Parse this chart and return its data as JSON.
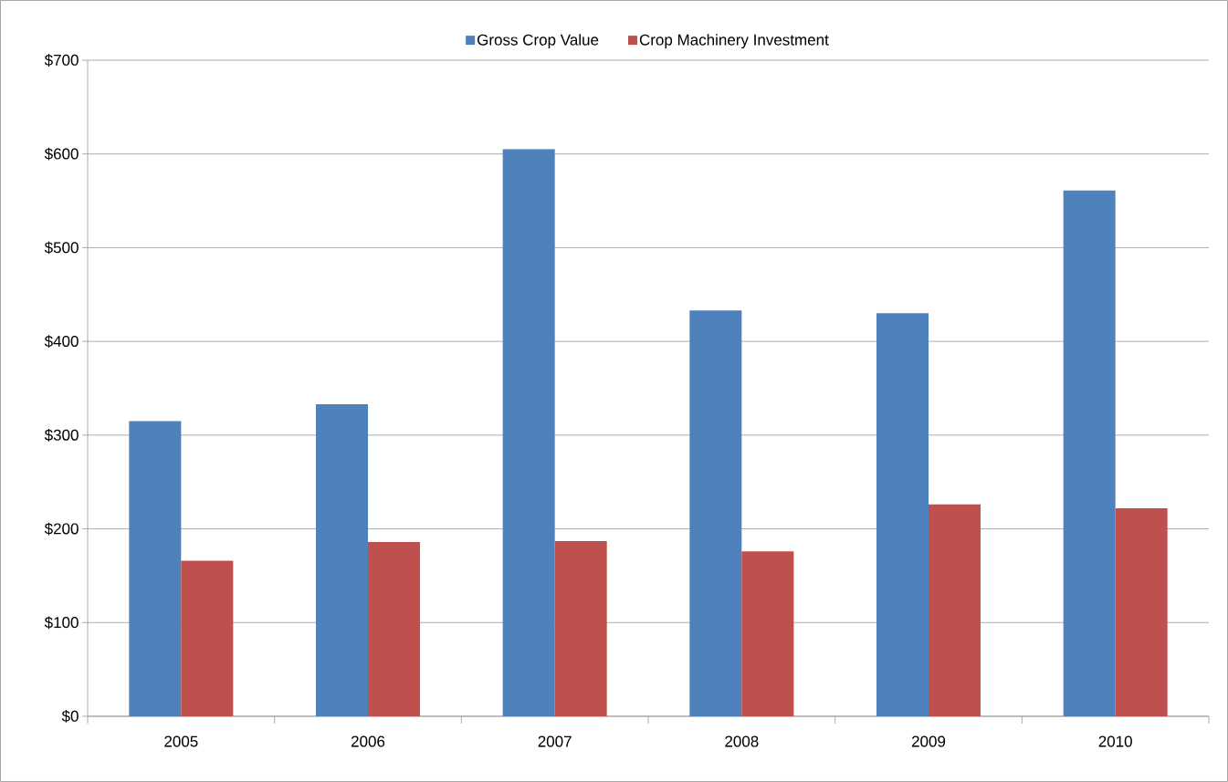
{
  "chart_data": {
    "type": "bar",
    "categories": [
      "2005",
      "2006",
      "2007",
      "2008",
      "2009",
      "2010"
    ],
    "series": [
      {
        "name": "Gross Crop Value",
        "color": "#4f81bd",
        "values": [
          315,
          333,
          605,
          433,
          430,
          561
        ]
      },
      {
        "name": "Crop Machinery Investment",
        "color": "#c0504d",
        "values": [
          166,
          186,
          187,
          176,
          226,
          222
        ]
      }
    ],
    "ylim": [
      0,
      700
    ],
    "yticks": [
      {
        "value": 0,
        "label": "$0"
      },
      {
        "value": 100,
        "label": "$100"
      },
      {
        "value": 200,
        "label": "$200"
      },
      {
        "value": 300,
        "label": "$300"
      },
      {
        "value": 400,
        "label": "$400"
      },
      {
        "value": 500,
        "label": "$500"
      },
      {
        "value": 600,
        "label": "$600"
      },
      {
        "value": 700,
        "label": "$700"
      }
    ],
    "grid": "y",
    "legend": "top"
  }
}
